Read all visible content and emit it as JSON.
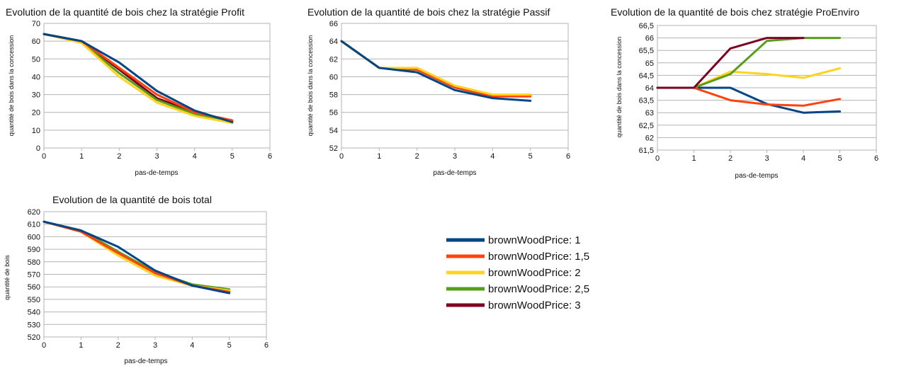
{
  "colors": {
    "1": "#004586",
    "1.5": "#ff420e",
    "2": "#ffd320",
    "2.5": "#579d1c",
    "3": "#7e0021"
  },
  "legend": {
    "items": [
      {
        "key": "1",
        "label": "brownWoodPrice: 1"
      },
      {
        "key": "1.5",
        "label": "brownWoodPrice: 1,5"
      },
      {
        "key": "2",
        "label": "brownWoodPrice: 2"
      },
      {
        "key": "2.5",
        "label": "brownWoodPrice: 2,5"
      },
      {
        "key": "3",
        "label": "brownWoodPrice: 3"
      }
    ]
  },
  "chart_data": [
    {
      "id": "profit",
      "type": "line",
      "title": "Evolution de la quantité de bois chez la stratégie Profit",
      "xlabel": "pas-de-temps",
      "ylabel": "quantité de bois dans la concession",
      "xlim": [
        0,
        6
      ],
      "ylim": [
        0,
        70
      ],
      "xticks": [
        "0",
        "1",
        "2",
        "3",
        "4",
        "5",
        "6"
      ],
      "yticks": [
        {
          "v": 0,
          "t": "0"
        },
        {
          "v": 10,
          "t": "10"
        },
        {
          "v": 20,
          "t": "20"
        },
        {
          "v": 30,
          "t": "30"
        },
        {
          "v": 40,
          "t": "40"
        },
        {
          "v": 50,
          "t": "50"
        },
        {
          "v": 60,
          "t": "60"
        },
        {
          "v": 70,
          "t": "70"
        }
      ],
      "x": [
        0,
        1,
        2,
        3,
        4,
        5
      ],
      "series": [
        {
          "key": "3",
          "values": [
            64,
            60,
            44,
            28,
            20,
            15
          ]
        },
        {
          "key": "2.5",
          "values": [
            64,
            59.5,
            42,
            27,
            19,
            14.5
          ]
        },
        {
          "key": "2",
          "values": [
            64,
            59,
            40,
            25.5,
            18,
            14
          ]
        },
        {
          "key": "1.5",
          "values": [
            64,
            60,
            45,
            30,
            20,
            15.5
          ]
        },
        {
          "key": "1",
          "values": [
            64,
            60,
            48,
            32,
            21,
            14.5
          ]
        }
      ]
    },
    {
      "id": "passif",
      "type": "line",
      "title": "Evolution de la quantité de bois chez la stratégie Passif",
      "xlabel": "pas-de-temps",
      "ylabel": "quantité de bois dans la concession",
      "xlim": [
        0,
        6
      ],
      "ylim": [
        52,
        66
      ],
      "xticks": [
        "0",
        "1",
        "2",
        "3",
        "4",
        "5",
        "6"
      ],
      "yticks": [
        {
          "v": 52,
          "t": "52"
        },
        {
          "v": 54,
          "t": "54"
        },
        {
          "v": 56,
          "t": "56"
        },
        {
          "v": 58,
          "t": "58"
        },
        {
          "v": 60,
          "t": "60"
        },
        {
          "v": 62,
          "t": "62"
        },
        {
          "v": 64,
          "t": "64"
        },
        {
          "v": 66,
          "t": "66"
        }
      ],
      "x": [
        0,
        1,
        2,
        3,
        4,
        5
      ],
      "series": [
        {
          "key": "3",
          "values": [
            64,
            61,
            60.8,
            58.8,
            57.8,
            57.9
          ]
        },
        {
          "key": "2.5",
          "values": [
            64,
            61,
            60.8,
            58.8,
            57.8,
            57.9
          ]
        },
        {
          "key": "1.5",
          "values": [
            64,
            61,
            60.8,
            58.8,
            57.8,
            57.8
          ]
        },
        {
          "key": "2",
          "values": [
            64,
            61,
            61,
            59,
            58,
            58
          ]
        },
        {
          "key": "1",
          "values": [
            64,
            61,
            60.5,
            58.5,
            57.6,
            57.3
          ]
        }
      ]
    },
    {
      "id": "proenviro",
      "type": "line",
      "title": "Evolution de la quantité de bois chez stratégie ProEnviro",
      "xlabel": "pas-de-temps",
      "ylabel": "quantité de bois dans la concession",
      "xlim": [
        0,
        6
      ],
      "ylim": [
        61.5,
        66.5
      ],
      "xticks": [
        "0",
        "1",
        "2",
        "3",
        "4",
        "5",
        "6"
      ],
      "yticks": [
        {
          "v": 61.5,
          "t": "61,5"
        },
        {
          "v": 62,
          "t": "62"
        },
        {
          "v": 62.5,
          "t": "62,5"
        },
        {
          "v": 63,
          "t": "63"
        },
        {
          "v": 63.5,
          "t": "63,5"
        },
        {
          "v": 64,
          "t": "64"
        },
        {
          "v": 64.5,
          "t": "64,5"
        },
        {
          "v": 65,
          "t": "65"
        },
        {
          "v": 65.5,
          "t": "65,5"
        },
        {
          "v": 66,
          "t": "66"
        },
        {
          "v": 66.5,
          "t": "66,5"
        }
      ],
      "x": [
        0,
        1,
        2,
        3,
        4,
        5
      ],
      "series": [
        {
          "key": "1",
          "values": [
            64,
            64,
            64,
            63.35,
            63,
            63.05
          ]
        },
        {
          "key": "1.5",
          "values": [
            64,
            64,
            63.5,
            63.33,
            63.28,
            63.55
          ]
        },
        {
          "key": "2",
          "values": [
            64,
            64,
            64.65,
            64.55,
            64.4,
            64.78
          ]
        },
        {
          "key": "2.5",
          "values": [
            64,
            64,
            64.55,
            65.88,
            66,
            66
          ]
        },
        {
          "key": "3",
          "values": [
            64,
            64,
            65.58,
            66,
            66,
            null
          ]
        }
      ]
    },
    {
      "id": "total",
      "type": "line",
      "title": "Evolution de la quantité de bois total",
      "xlabel": "pas-de-temps",
      "ylabel": "quantité de bois",
      "xlim": [
        0,
        6
      ],
      "ylim": [
        520,
        620
      ],
      "xticks": [
        "0",
        "1",
        "2",
        "3",
        "4",
        "5",
        "6"
      ],
      "yticks": [
        {
          "v": 520,
          "t": "520"
        },
        {
          "v": 530,
          "t": "530"
        },
        {
          "v": 540,
          "t": "540"
        },
        {
          "v": 550,
          "t": "550"
        },
        {
          "v": 560,
          "t": "560"
        },
        {
          "v": 570,
          "t": "570"
        },
        {
          "v": 580,
          "t": "580"
        },
        {
          "v": 590,
          "t": "590"
        },
        {
          "v": 600,
          "t": "600"
        },
        {
          "v": 610,
          "t": "610"
        },
        {
          "v": 620,
          "t": "620"
        }
      ],
      "x": [
        0,
        1,
        2,
        3,
        4,
        5
      ],
      "series": [
        {
          "key": "3",
          "values": [
            612,
            605,
            588,
            571,
            561,
            556
          ]
        },
        {
          "key": "2.5",
          "values": [
            612,
            605,
            588,
            572,
            562,
            558
          ]
        },
        {
          "key": "2",
          "values": [
            612,
            604,
            585,
            569,
            561,
            557
          ]
        },
        {
          "key": "1.5",
          "values": [
            612,
            604,
            587,
            571,
            561,
            556
          ]
        },
        {
          "key": "1",
          "values": [
            612,
            605,
            592,
            573,
            561,
            555
          ]
        }
      ]
    }
  ]
}
